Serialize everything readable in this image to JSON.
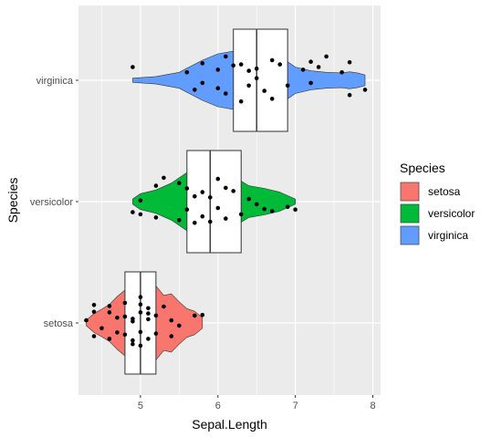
{
  "chart_data": {
    "type": "violin-box-jitter",
    "orientation": "horizontal",
    "xlabel": "Sepal.Length",
    "ylabel": "Species",
    "xlim": [
      4.2,
      8.1
    ],
    "xticks": [
      5,
      6,
      7,
      8
    ],
    "xtick_labels": [
      "5",
      "6",
      "7",
      "8"
    ],
    "categories": [
      "setosa",
      "versicolor",
      "virginica"
    ],
    "grid": true,
    "legend": {
      "title": "Species",
      "position": "right",
      "entries": [
        {
          "label": "setosa",
          "color": "#F8766D"
        },
        {
          "label": "versicolor",
          "color": "#00BA38"
        },
        {
          "label": "virginica",
          "color": "#619CFF"
        }
      ]
    },
    "colors": {
      "panel": "#EBEBEB",
      "grid": "#FFFFFF",
      "box_fill": "#FFFFFF",
      "outline": "#333333",
      "point": "#000000"
    },
    "series": [
      {
        "category": "setosa",
        "color": "#F8766D",
        "box": {
          "q1": 4.8,
          "median": 5.0,
          "q3": 5.2,
          "whisker_low": 4.3,
          "whisker_high": 5.8
        },
        "violin": [
          [
            4.3,
            0.05
          ],
          [
            4.4,
            0.18
          ],
          [
            4.5,
            0.26
          ],
          [
            4.6,
            0.35
          ],
          [
            4.7,
            0.5
          ],
          [
            4.8,
            0.62
          ],
          [
            4.9,
            0.62
          ],
          [
            5.0,
            0.75
          ],
          [
            5.1,
            0.9
          ],
          [
            5.2,
            0.7
          ],
          [
            5.3,
            0.52
          ],
          [
            5.4,
            0.55
          ],
          [
            5.5,
            0.4
          ],
          [
            5.6,
            0.27
          ],
          [
            5.7,
            0.22
          ],
          [
            5.8,
            0.1
          ]
        ],
        "points": [
          [
            4.3,
            0.05
          ],
          [
            4.4,
            -0.25
          ],
          [
            4.4,
            0.21
          ],
          [
            4.4,
            0.34
          ],
          [
            4.5,
            -0.1
          ],
          [
            4.6,
            -0.3
          ],
          [
            4.6,
            0.2
          ],
          [
            4.6,
            0.32
          ],
          [
            4.7,
            -0.18
          ],
          [
            4.7,
            0.1
          ],
          [
            4.8,
            0.38
          ],
          [
            4.8,
            -0.22
          ],
          [
            4.8,
            0.12
          ],
          [
            4.9,
            0.03
          ],
          [
            4.9,
            -0.4
          ],
          [
            4.9,
            -0.33
          ],
          [
            4.9,
            0.08
          ],
          [
            5.0,
            0.2
          ],
          [
            5.0,
            -0.17
          ],
          [
            5.0,
            0.35
          ],
          [
            5.0,
            0.49
          ],
          [
            5.0,
            -0.43
          ],
          [
            5.1,
            0.18
          ],
          [
            5.1,
            -0.3
          ],
          [
            5.1,
            0.07
          ],
          [
            5.1,
            0.28
          ],
          [
            5.2,
            -0.2
          ],
          [
            5.2,
            0.14
          ],
          [
            5.3,
            0.31
          ],
          [
            5.4,
            0.05
          ],
          [
            5.4,
            -0.25
          ],
          [
            5.5,
            -0.05
          ],
          [
            5.7,
            0.14
          ],
          [
            5.8,
            0.15
          ]
        ]
      },
      {
        "category": "versicolor",
        "color": "#00BA38",
        "box": {
          "q1": 5.6,
          "median": 5.9,
          "q3": 6.3,
          "whisker_low": 4.9,
          "whisker_high": 7.0
        },
        "violin": [
          [
            4.9,
            0.05
          ],
          [
            5.0,
            0.15
          ],
          [
            5.2,
            0.22
          ],
          [
            5.4,
            0.35
          ],
          [
            5.6,
            0.55
          ],
          [
            5.8,
            0.68
          ],
          [
            6.0,
            0.62
          ],
          [
            6.2,
            0.48
          ],
          [
            6.4,
            0.3
          ],
          [
            6.6,
            0.25
          ],
          [
            6.8,
            0.18
          ],
          [
            7.0,
            0.05
          ]
        ],
        "points": [
          [
            4.9,
            -0.2
          ],
          [
            5.0,
            0.02
          ],
          [
            5.0,
            -0.24
          ],
          [
            5.2,
            0.3
          ],
          [
            5.2,
            -0.3
          ],
          [
            5.3,
            0.45
          ],
          [
            5.5,
            0.35
          ],
          [
            5.5,
            -0.35
          ],
          [
            5.6,
            0.25
          ],
          [
            5.6,
            -0.15
          ],
          [
            5.7,
            0.1
          ],
          [
            5.7,
            -0.4
          ],
          [
            5.8,
            0.18
          ],
          [
            5.8,
            -0.28
          ],
          [
            5.9,
            -0.38
          ],
          [
            5.9,
            0.08
          ],
          [
            6.0,
            0.43
          ],
          [
            6.0,
            -0.12
          ],
          [
            6.1,
            0.26
          ],
          [
            6.1,
            -0.32
          ],
          [
            6.2,
            0.2
          ],
          [
            6.3,
            -0.24
          ],
          [
            6.4,
            0.05
          ],
          [
            6.5,
            -0.05
          ],
          [
            6.6,
            -0.14
          ],
          [
            6.7,
            -0.18
          ],
          [
            6.9,
            -0.1
          ],
          [
            7.0,
            -0.15
          ]
        ]
      },
      {
        "category": "virginica",
        "color": "#619CFF",
        "box": {
          "q1": 6.2,
          "median": 6.5,
          "q3": 6.9,
          "whisker_low": 4.9,
          "whisker_high": 7.9
        },
        "violin": [
          [
            4.9,
            0.04
          ],
          [
            5.2,
            0.07
          ],
          [
            5.5,
            0.15
          ],
          [
            5.8,
            0.38
          ],
          [
            6.0,
            0.5
          ],
          [
            6.2,
            0.55
          ],
          [
            6.4,
            0.6
          ],
          [
            6.6,
            0.55
          ],
          [
            6.8,
            0.45
          ],
          [
            7.0,
            0.25
          ],
          [
            7.2,
            0.18
          ],
          [
            7.4,
            0.15
          ],
          [
            7.6,
            0.14
          ],
          [
            7.7,
            0.16
          ],
          [
            7.8,
            0.14
          ],
          [
            7.9,
            0.1
          ]
        ],
        "points": [
          [
            4.9,
            0.25
          ],
          [
            5.6,
            0.15
          ],
          [
            5.7,
            -0.18
          ],
          [
            5.8,
            0.32
          ],
          [
            5.8,
            -0.05
          ],
          [
            6.0,
            0.2
          ],
          [
            6.0,
            -0.15
          ],
          [
            6.1,
            0.45
          ],
          [
            6.1,
            -0.25
          ],
          [
            6.2,
            0.28
          ],
          [
            6.3,
            -0.4
          ],
          [
            6.3,
            0.3
          ],
          [
            6.4,
            0.18
          ],
          [
            6.4,
            -0.1
          ],
          [
            6.5,
            0.22
          ],
          [
            6.5,
            0.04
          ],
          [
            6.6,
            -0.2
          ],
          [
            6.7,
            0.38
          ],
          [
            6.7,
            -0.35
          ],
          [
            6.8,
            0.3
          ],
          [
            6.9,
            -0.1
          ],
          [
            7.1,
            0.2
          ],
          [
            7.2,
            -0.05
          ],
          [
            7.2,
            0.35
          ],
          [
            7.3,
            0.25
          ],
          [
            7.4,
            0.45
          ],
          [
            7.6,
            0.15
          ],
          [
            7.7,
            0.34
          ],
          [
            7.7,
            -0.28
          ],
          [
            7.9,
            -0.18
          ]
        ]
      }
    ]
  }
}
